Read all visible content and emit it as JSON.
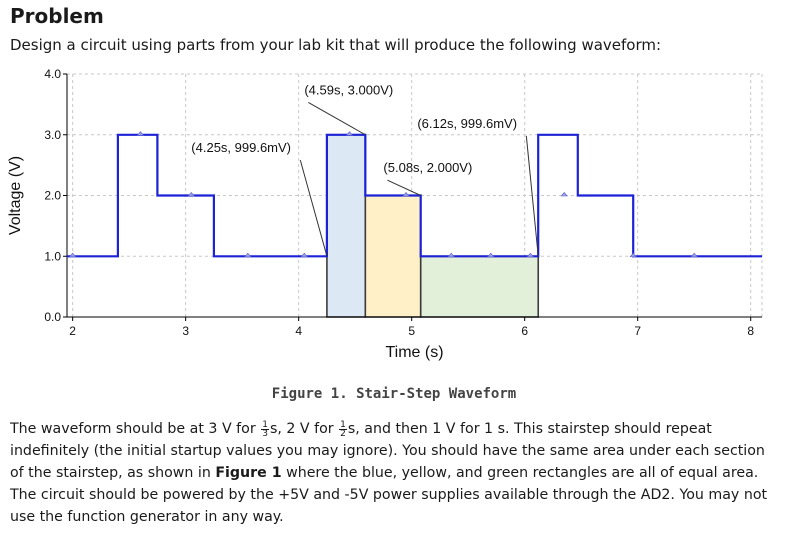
{
  "heading": "Problem",
  "intro": "Design a circuit using parts from your lab kit that will produce the following waveform:",
  "chart_data": {
    "type": "line",
    "xlabel": "Time (s)",
    "ylabel": "Voltage (V)",
    "xlim": [
      1.95,
      8.1
    ],
    "ylim": [
      0,
      4.0
    ],
    "x_ticks": [
      2,
      3,
      4,
      5,
      6,
      7,
      8
    ],
    "y_ticks": [
      0,
      1,
      2,
      3,
      4
    ],
    "y_tick_labels": [
      "0.0",
      "1.0",
      "2.0",
      "3.0",
      "4.0"
    ],
    "grid": true,
    "series": [
      {
        "name": "waveform",
        "color": "#1c22d6",
        "points": [
          [
            1.95,
            1
          ],
          [
            2.4,
            1
          ],
          [
            2.4,
            3
          ],
          [
            2.75,
            3
          ],
          [
            2.75,
            2
          ],
          [
            3.25,
            2
          ],
          [
            3.25,
            1
          ],
          [
            4.25,
            1
          ],
          [
            4.25,
            3
          ],
          [
            4.59,
            3
          ],
          [
            4.59,
            2
          ],
          [
            5.08,
            2
          ],
          [
            5.08,
            1
          ],
          [
            6.12,
            1
          ],
          [
            6.12,
            3
          ],
          [
            6.47,
            3
          ],
          [
            6.47,
            2
          ],
          [
            6.96,
            2
          ],
          [
            6.96,
            1
          ],
          [
            8.1,
            1
          ]
        ]
      }
    ],
    "markers": [
      {
        "x": 2.0,
        "y": 1
      },
      {
        "x": 2.6,
        "y": 3
      },
      {
        "x": 3.05,
        "y": 2
      },
      {
        "x": 3.55,
        "y": 1
      },
      {
        "x": 4.05,
        "y": 1
      },
      {
        "x": 4.45,
        "y": 3
      },
      {
        "x": 4.95,
        "y": 2
      },
      {
        "x": 5.35,
        "y": 1
      },
      {
        "x": 5.7,
        "y": 1
      },
      {
        "x": 6.05,
        "y": 1
      },
      {
        "x": 6.35,
        "y": 2
      },
      {
        "x": 6.96,
        "y": 1
      },
      {
        "x": 7.5,
        "y": 1
      }
    ],
    "rectangles": [
      {
        "name": "blue",
        "x0": 4.25,
        "x1": 4.59,
        "y0": 0,
        "y1": 3,
        "fill": "#dce8f4"
      },
      {
        "name": "yellow",
        "x0": 4.59,
        "x1": 5.08,
        "y0": 0,
        "y1": 2,
        "fill": "#fff0c8"
      },
      {
        "name": "green",
        "x0": 5.08,
        "x1": 6.12,
        "y0": 0,
        "y1": 1,
        "fill": "#e2efd9"
      }
    ],
    "annotations": [
      {
        "text": "(4.59s, 3.000V)",
        "x": 4.59,
        "y": 3.0,
        "label_x": 4.05,
        "label_y": 3.73
      },
      {
        "text": "(4.25s, 999.6mV)",
        "x": 4.25,
        "y": 0.9996,
        "label_x": 3.05,
        "label_y": 2.78
      },
      {
        "text": "(6.12s, 999.6mV)",
        "x": 6.12,
        "y": 0.9996,
        "label_x": 5.05,
        "label_y": 3.18
      },
      {
        "text": "(5.08s, 2.000V)",
        "x": 5.08,
        "y": 2.0,
        "label_x": 4.75,
        "label_y": 2.45
      }
    ]
  },
  "caption": "Figure 1. Stair-Step Waveform",
  "paragraph": {
    "s1": "The waveform should be at 3 V for",
    "f1_num": "1",
    "f1_den": "3",
    "s2": "s, 2 V for",
    "f2_num": "1",
    "f2_den": "2",
    "s3": "s, and then 1 V for 1 s.  This stairstep should repeat indefinitely (the initial startup values you may ignore).  You should have the same area under each section of the stairstep, as shown in",
    "ref": "Figure 1",
    "s4": "where the blue, yellow, and green rectangles are all of equal area.  The circuit should be powered by the +5V and -5V power supplies available through the AD2.  You may not use the function generator in any way."
  }
}
